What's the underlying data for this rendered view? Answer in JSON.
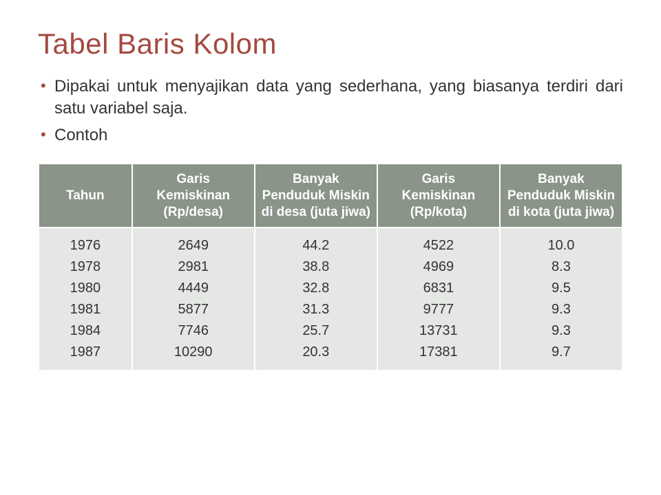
{
  "title": "Tabel Baris Kolom",
  "bullets": [
    "Dipakai untuk menyajikan data yang sederhana, yang biasanya terdiri dari satu variabel saja.",
    "Contoh"
  ],
  "table": {
    "type": "table",
    "header_bg": "#8a9488",
    "header_fg": "#ffffff",
    "body_bg": "#e4e7e3",
    "body_fg": "#333333",
    "border_color": "#ffffff",
    "header_fontsize": 19,
    "body_fontsize": 20,
    "columns": [
      {
        "label": "Tahun",
        "width": "16%"
      },
      {
        "label": "Garis Kemiskinan (Rp/desa)",
        "width": "21%"
      },
      {
        "label": "Banyak Penduduk Miskin di desa (juta jiwa)",
        "width": "21%"
      },
      {
        "label": "Garis Kemiskinan (Rp/kota)",
        "width": "21%"
      },
      {
        "label": "Banyak Penduduk Miskin di kota (juta jiwa)",
        "width": "21%"
      }
    ],
    "rows": [
      {
        "tahun": [
          "1976",
          "1978",
          "1980",
          "1981",
          "1984",
          "1987"
        ],
        "garis_desa": [
          "2649",
          "2981",
          "4449",
          "5877",
          "7746",
          "10290"
        ],
        "miskin_desa": [
          "44.2",
          "38.8",
          "32.8",
          "31.3",
          "25.7",
          "20.3"
        ],
        "garis_kota": [
          "4522",
          "4969",
          "6831",
          "9777",
          "13731",
          "17381"
        ],
        "miskin_kota": [
          "10.0",
          "8.3",
          "9.5",
          "9.3",
          "9.3",
          "9.7"
        ]
      }
    ],
    "cells": [
      "1976\n1978\n1980\n1981\n1984\n1987",
      "2649\n2981\n4449\n5877\n7746\n10290",
      "44.2\n38.8\n32.8\n31.3\n25.7\n20.3",
      "4522\n4969\n6831\n9777\n13731\n17381",
      "10.0\n8.3\n9.5\n9.3\n9.3\n9.7"
    ]
  },
  "colors": {
    "title": "#a34a3f",
    "text": "#333333",
    "bullet_marker": "#a34a3f",
    "background": "#ffffff"
  }
}
